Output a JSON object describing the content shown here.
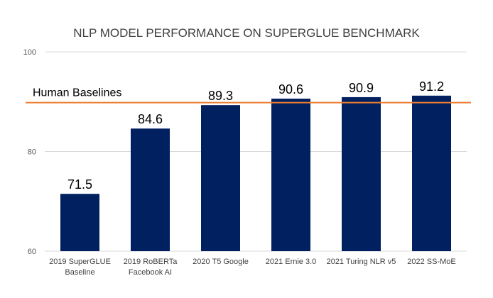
{
  "chart_data": {
    "type": "bar",
    "title": "NLP MODEL PERFORMANCE ON SUPERGLUE BENCHMARK",
    "xlabel": "",
    "ylabel": "",
    "ylim": [
      60,
      100
    ],
    "yticks": [
      "60",
      "80",
      "100"
    ],
    "grid": true,
    "legend": "none",
    "categories": [
      [
        "2019 SuperGLUE",
        "Baseline"
      ],
      [
        "2019 RoBERTa",
        "Facebook AI"
      ],
      [
        "2020 T5 Google"
      ],
      [
        "2021 Ernie 3.0"
      ],
      [
        "2021 Turing NLR v5"
      ],
      [
        "2022  SS-MoE"
      ]
    ],
    "values": [
      71.5,
      84.6,
      89.3,
      90.6,
      90.9,
      91.2
    ],
    "value_labels": [
      "71.5",
      "84.6",
      "89.3",
      "90.6",
      "90.9",
      "91.2"
    ],
    "reference_line": {
      "value": 89.8,
      "label": "Human Baselines"
    },
    "colors": {
      "bar": "#002060",
      "reference": "#ED7D31",
      "grid": "#D9D9D9"
    }
  }
}
